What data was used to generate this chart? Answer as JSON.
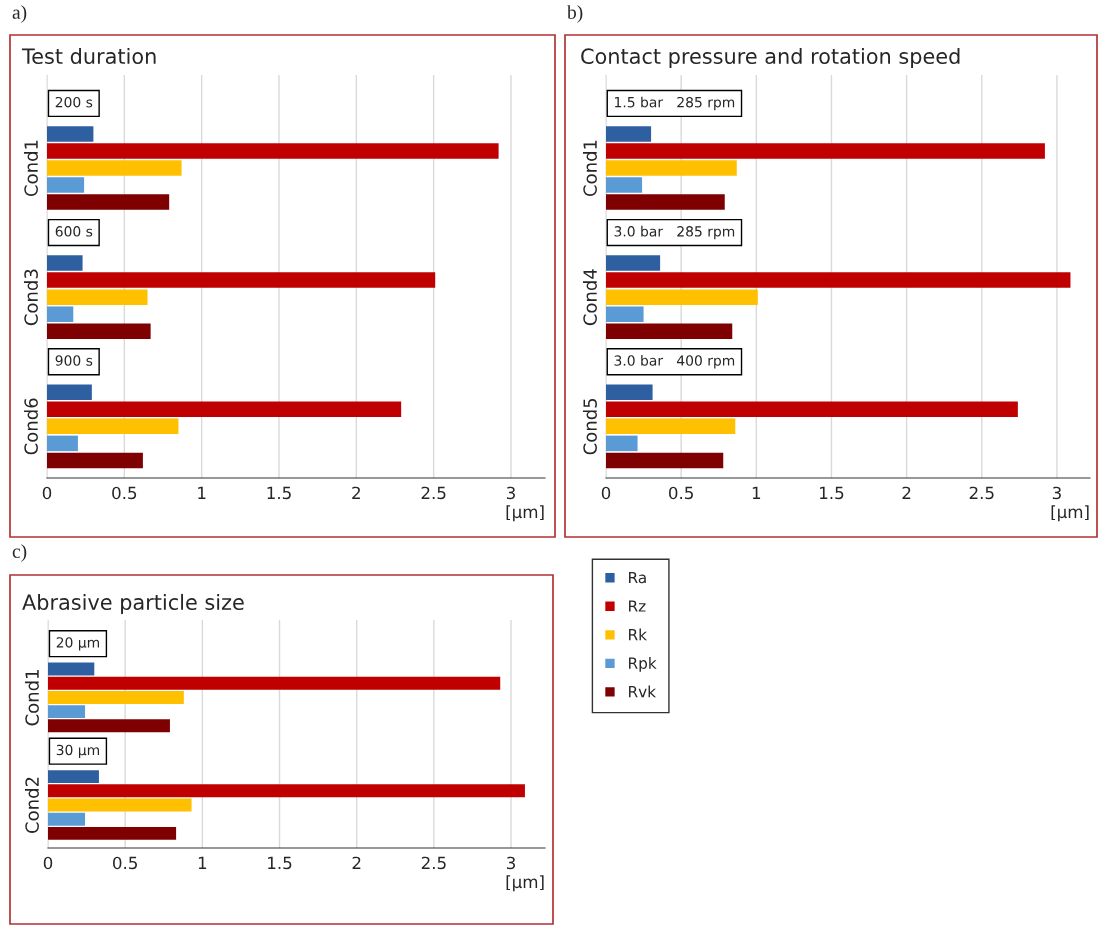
{
  "chart_data": [
    {
      "type": "bar",
      "orientation": "horizontal",
      "title": "Test duration",
      "categories": [
        "Cond1",
        "Cond3",
        "Cond6"
      ],
      "xlim": [
        0,
        3.22
      ],
      "xticks": [
        0,
        0.5,
        1,
        1.5,
        2,
        2.5,
        3
      ],
      "xlabel": "[μm]",
      "grid": "x",
      "series": [
        {
          "color": "#2e5fa0",
          "values": [
            0.3,
            0.23,
            0.29
          ]
        },
        {
          "color": "#c00000",
          "values": [
            2.92,
            2.51,
            2.29
          ]
        },
        {
          "color": "#ffc000",
          "values": [
            0.87,
            0.65,
            0.85
          ]
        },
        {
          "color": "#5b9bd5",
          "values": [
            0.24,
            0.17,
            0.2
          ]
        },
        {
          "color": "#7f0000",
          "values": [
            0.79,
            0.67,
            0.62
          ]
        }
      ],
      "annotations": [
        "a)",
        "200 s",
        "600 s",
        "900 s"
      ]
    },
    {
      "type": "bar",
      "orientation": "horizontal",
      "title": "Contact pressure and rotation speed",
      "categories": [
        "Cond1",
        "Cond4",
        "Cond5"
      ],
      "xlim": [
        0,
        3.22
      ],
      "xticks": [
        0,
        0.5,
        1,
        1.5,
        2,
        2.5,
        3
      ],
      "xlabel": "[μm]",
      "grid": "x",
      "series": [
        {
          "color": "#2e5fa0",
          "values": [
            0.3,
            0.36,
            0.31
          ]
        },
        {
          "color": "#c00000",
          "values": [
            2.92,
            3.09,
            2.74
          ]
        },
        {
          "color": "#ffc000",
          "values": [
            0.87,
            1.01,
            0.86
          ]
        },
        {
          "color": "#5b9bd5",
          "values": [
            0.24,
            0.25,
            0.21
          ]
        },
        {
          "color": "#7f0000",
          "values": [
            0.79,
            0.84,
            0.78
          ]
        }
      ],
      "annotations": [
        "b)",
        "1.5 bar   285 rpm",
        "3.0 bar   285 rpm",
        "3.0 bar   400 rpm"
      ]
    },
    {
      "type": "bar",
      "orientation": "horizontal",
      "title": "Abrasive particle size",
      "categories": [
        "Cond1",
        "Cond2"
      ],
      "xlim": [
        0,
        3.22
      ],
      "xticks": [
        0,
        0.5,
        1,
        1.5,
        2,
        2.5,
        3
      ],
      "xlabel": "[μm]",
      "grid": "x",
      "legend": "right",
      "series": [
        {
          "name": "Ra",
          "color": "#2e5fa0",
          "values": [
            0.3,
            0.33
          ]
        },
        {
          "name": "Rz",
          "color": "#c00000",
          "values": [
            2.93,
            3.09
          ]
        },
        {
          "name": "Rk",
          "color": "#ffc000",
          "values": [
            0.88,
            0.93
          ]
        },
        {
          "name": "Rpk",
          "color": "#5b9bd5",
          "values": [
            0.24,
            0.24
          ]
        },
        {
          "name": "Rvk",
          "color": "#7f0000",
          "values": [
            0.79,
            0.83
          ]
        }
      ],
      "annotations": [
        "c)",
        "20 μm",
        "30 μm"
      ]
    }
  ]
}
